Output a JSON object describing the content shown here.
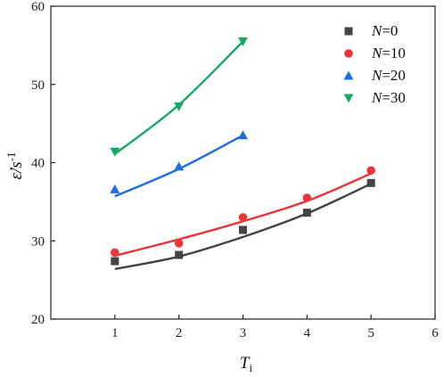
{
  "chart_data": {
    "type": "scatter",
    "xlabel": {
      "main": "T",
      "sub": "i"
    },
    "ylabel": {
      "main": "ε̇/s",
      "sup": "-1"
    },
    "xlim": [
      0,
      6
    ],
    "ylim": [
      20,
      60
    ],
    "xticks": [
      1,
      2,
      3,
      4,
      5,
      6
    ],
    "yticks": [
      20,
      30,
      40,
      50,
      60
    ],
    "legend_position": "top-right",
    "series": [
      {
        "name": {
          "var": "N",
          "eq": "=0"
        },
        "marker": "square",
        "color": "#444444",
        "x": [
          1,
          2,
          3,
          4,
          5
        ],
        "y": [
          27.4,
          28.2,
          31.4,
          33.6,
          37.4
        ],
        "fit": [
          26.4,
          28.0,
          30.5,
          33.5,
          37.3
        ]
      },
      {
        "name": {
          "var": "N",
          "eq": "=10"
        },
        "marker": "circle",
        "color": "#e8363a",
        "x": [
          1,
          2,
          3,
          4,
          5
        ],
        "y": [
          28.5,
          29.7,
          33.0,
          35.5,
          39.0
        ],
        "fit": [
          28.1,
          30.2,
          32.5,
          35.1,
          38.6
        ]
      },
      {
        "name": {
          "var": "N",
          "eq": "=20"
        },
        "marker": "triangle-up",
        "color": "#1f6ee0",
        "x": [
          1,
          2,
          3
        ],
        "y": [
          36.6,
          39.5,
          43.5
        ],
        "fit": [
          35.7,
          39.2,
          43.5
        ]
      },
      {
        "name": {
          "var": "N",
          "eq": "=30"
        },
        "marker": "triangle-down",
        "color": "#18a868",
        "x": [
          1,
          2,
          3
        ],
        "y": [
          41.4,
          47.2,
          55.5
        ],
        "fit": [
          41.1,
          47.4,
          55.5
        ]
      }
    ]
  }
}
